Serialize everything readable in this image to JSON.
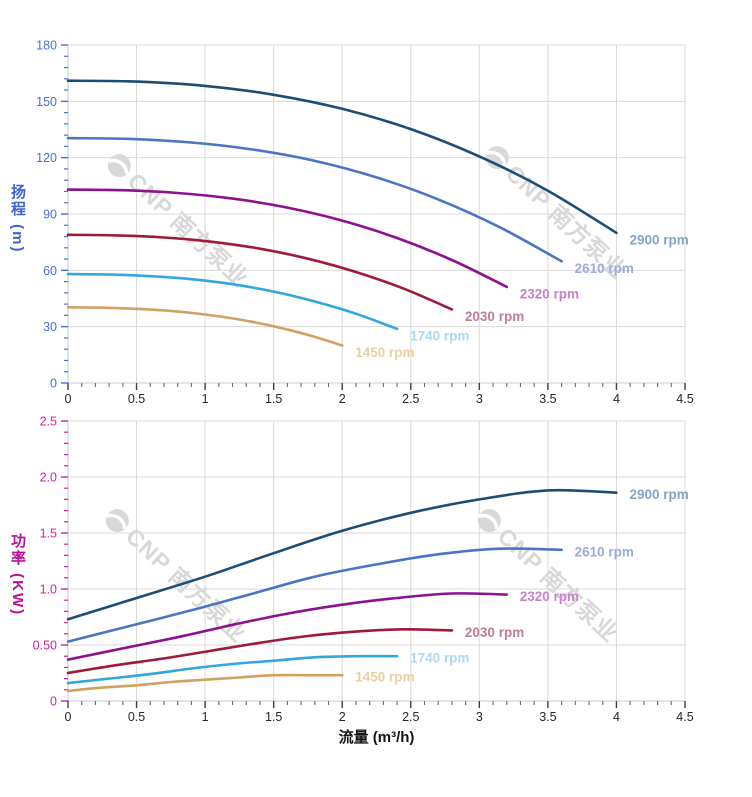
{
  "watermark": {
    "text": "CNP 南方泵业",
    "color": "#d8d8d8"
  },
  "x_axis_title": "流量 (m³/h)",
  "chart_data": [
    {
      "type": "line",
      "name": "head-curves-chart",
      "title": "",
      "xlabel": "流量 (m³/h)",
      "ylabel": "扬程 (m)",
      "x_range": [
        0,
        4.5
      ],
      "y_range": [
        0,
        180
      ],
      "x_major_step": 0.5,
      "x_minor_step": 0.1,
      "y_major_step": 30,
      "y_minor_step": 6,
      "x_tick_labels": [
        "0",
        "0.5",
        "1",
        "1.5",
        "2",
        "2.5",
        "3",
        "3.5",
        "4",
        "4.5"
      ],
      "y_tick_labels": [
        "0",
        "30",
        "60",
        "90",
        "120",
        "150",
        "180"
      ],
      "grid": true,
      "legend_position": "curve-end-labels",
      "axis_text_color": "#4a6fd2",
      "x_tick_text_color": "#262626",
      "series": [
        {
          "label": "2900 rpm",
          "color": "#1c4d74",
          "label_color": "#85a3c6",
          "points": [
            [
              0,
              161
            ],
            [
              0.5,
              160.5
            ],
            [
              1,
              158.2
            ],
            [
              1.5,
              153.5
            ],
            [
              2,
              146
            ],
            [
              2.5,
              135.2
            ],
            [
              3,
              120.7
            ],
            [
              3.5,
              102.4
            ],
            [
              4,
              80
            ]
          ]
        },
        {
          "label": "2610 rpm",
          "color": "#4a74c4",
          "label_color": "#9cabde",
          "points": [
            [
              0,
              130.4
            ],
            [
              0.45,
              130
            ],
            [
              0.9,
              128.1
            ],
            [
              1.35,
              124.3
            ],
            [
              1.8,
              118.3
            ],
            [
              2.25,
              109.5
            ],
            [
              2.7,
              97.8
            ],
            [
              3.15,
              82.9
            ],
            [
              3.6,
              64.8
            ]
          ]
        },
        {
          "label": "2320 rpm",
          "color": "#8d1090",
          "label_color": "#c681c9",
          "points": [
            [
              0,
              103
            ],
            [
              0.4,
              102.7
            ],
            [
              0.8,
              101.2
            ],
            [
              1.2,
              98.2
            ],
            [
              1.6,
              93.4
            ],
            [
              2,
              86.5
            ],
            [
              2.4,
              77.2
            ],
            [
              2.8,
              65.5
            ],
            [
              3.2,
              51.2
            ]
          ]
        },
        {
          "label": "2030 rpm",
          "color": "#9e1a3a",
          "label_color": "#bd7e95",
          "points": [
            [
              0,
              78.9
            ],
            [
              0.35,
              78.6
            ],
            [
              0.7,
              77.5
            ],
            [
              1.05,
              75.2
            ],
            [
              1.4,
              71.5
            ],
            [
              1.75,
              66.2
            ],
            [
              2.1,
              59.1
            ],
            [
              2.45,
              50.2
            ],
            [
              2.8,
              39.2
            ]
          ]
        },
        {
          "label": "1740 rpm",
          "color": "#31a6e1",
          "label_color": "#abd9f4",
          "points": [
            [
              0,
              58
            ],
            [
              0.3,
              57.8
            ],
            [
              0.6,
              56.9
            ],
            [
              0.9,
              55.3
            ],
            [
              1.2,
              52.6
            ],
            [
              1.5,
              48.7
            ],
            [
              1.8,
              43.4
            ],
            [
              2.1,
              36.9
            ],
            [
              2.4,
              28.8
            ]
          ]
        },
        {
          "label": "1450 rpm",
          "color": "#d2a060",
          "label_color": "#e9cfa3",
          "points": [
            [
              0,
              40.3
            ],
            [
              0.25,
              40.1
            ],
            [
              0.5,
              39.5
            ],
            [
              0.75,
              38.4
            ],
            [
              1,
              36.5
            ],
            [
              1.25,
              33.8
            ],
            [
              1.5,
              30.2
            ],
            [
              1.75,
              25.6
            ],
            [
              2,
              20
            ]
          ]
        }
      ]
    },
    {
      "type": "line",
      "name": "power-curves-chart",
      "title": "",
      "xlabel": "流量 (m³/h)",
      "ylabel": "功率 (KW)",
      "x_range": [
        0,
        4.5
      ],
      "y_range": [
        0,
        2.5
      ],
      "x_major_step": 0.5,
      "x_minor_step": 0.1,
      "y_major_step": 0.5,
      "y_minor_step": 0.1,
      "x_tick_labels": [
        "0",
        "0.5",
        "1",
        "1.5",
        "2",
        "2.5",
        "3",
        "3.5",
        "4",
        "4.5"
      ],
      "y_tick_labels": [
        "0",
        "0.50",
        "1.0",
        "1.5",
        "2.0",
        "2.5"
      ],
      "grid": true,
      "legend_position": "curve-end-labels",
      "axis_text_color": "#d2219c",
      "x_tick_text_color": "#262626",
      "series": [
        {
          "label": "2900 rpm",
          "color": "#1c4d74",
          "label_color": "#85a3c6",
          "points": [
            [
              0,
              0.73
            ],
            [
              0.5,
              0.92
            ],
            [
              1,
              1.11
            ],
            [
              1.5,
              1.32
            ],
            [
              2,
              1.52
            ],
            [
              2.5,
              1.68
            ],
            [
              3,
              1.8
            ],
            [
              3.5,
              1.88
            ],
            [
              4,
              1.86
            ]
          ]
        },
        {
          "label": "2610 rpm",
          "color": "#4a74c4",
          "label_color": "#9cabde",
          "points": [
            [
              0,
              0.53
            ],
            [
              0.45,
              0.67
            ],
            [
              0.9,
              0.81
            ],
            [
              1.35,
              0.96
            ],
            [
              1.8,
              1.11
            ],
            [
              2.25,
              1.22
            ],
            [
              2.7,
              1.31
            ],
            [
              3.15,
              1.36
            ],
            [
              3.6,
              1.35
            ]
          ]
        },
        {
          "label": "2320 rpm",
          "color": "#8d1090",
          "label_color": "#c681c9",
          "points": [
            [
              0,
              0.37
            ],
            [
              0.4,
              0.47
            ],
            [
              0.8,
              0.57
            ],
            [
              1.2,
              0.68
            ],
            [
              1.6,
              0.78
            ],
            [
              2,
              0.86
            ],
            [
              2.4,
              0.92
            ],
            [
              2.8,
              0.96
            ],
            [
              3.2,
              0.95
            ]
          ]
        },
        {
          "label": "2030 rpm",
          "color": "#9e1a3a",
          "label_color": "#bd7e95",
          "points": [
            [
              0,
              0.25
            ],
            [
              0.35,
              0.32
            ],
            [
              0.7,
              0.38
            ],
            [
              1.05,
              0.45
            ],
            [
              1.4,
              0.52
            ],
            [
              1.75,
              0.58
            ],
            [
              2.1,
              0.62
            ],
            [
              2.45,
              0.64
            ],
            [
              2.8,
              0.63
            ]
          ]
        },
        {
          "label": "1740 rpm",
          "color": "#31a6e1",
          "label_color": "#abd9f4",
          "points": [
            [
              0,
              0.16
            ],
            [
              0.3,
              0.2
            ],
            [
              0.6,
              0.24
            ],
            [
              0.9,
              0.29
            ],
            [
              1.2,
              0.33
            ],
            [
              1.5,
              0.36
            ],
            [
              1.8,
              0.39
            ],
            [
              2.1,
              0.4
            ],
            [
              2.4,
              0.4
            ]
          ]
        },
        {
          "label": "1450 rpm",
          "color": "#d2a060",
          "label_color": "#e9cfa3",
          "points": [
            [
              0,
              0.09
            ],
            [
              0.25,
              0.12
            ],
            [
              0.5,
              0.14
            ],
            [
              0.75,
              0.17
            ],
            [
              1,
              0.19
            ],
            [
              1.25,
              0.21
            ],
            [
              1.5,
              0.23
            ],
            [
              1.75,
              0.23
            ],
            [
              2,
              0.23
            ]
          ]
        }
      ]
    }
  ]
}
